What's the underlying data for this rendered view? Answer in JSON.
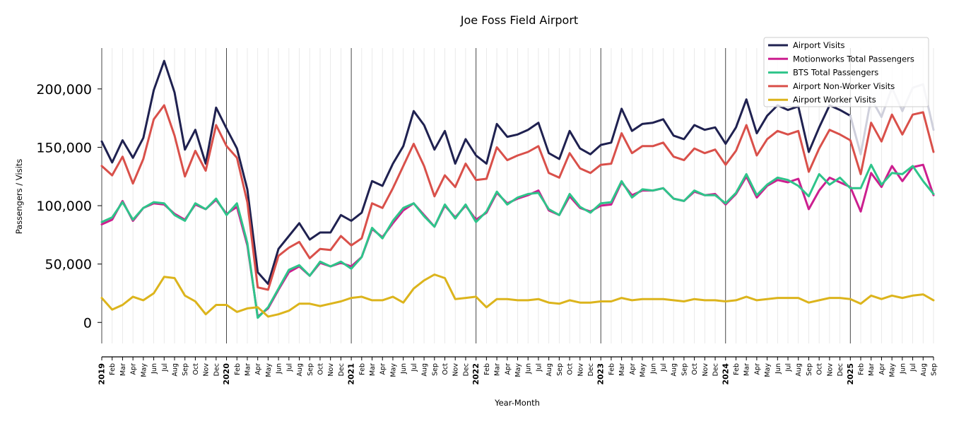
{
  "chart_data": {
    "type": "line",
    "title": "Joe Foss Field Airport",
    "xlabel": "Year-Month",
    "ylabel": "Passengers / Visits",
    "ylim": [
      -18000,
      235000
    ],
    "yticks": [
      0,
      50000,
      100000,
      150000,
      200000
    ],
    "ytick_labels": [
      "0",
      "50,000",
      "100,000",
      "150,000",
      "200,000"
    ],
    "grid": "vertical month lines, darker lines at year starts",
    "legend_position": "top-right",
    "years": [
      "2019",
      "2020",
      "2021",
      "2022",
      "2023",
      "2024",
      "2025"
    ],
    "month_abbrev": [
      "Jan",
      "Feb",
      "Mar",
      "Apr",
      "May",
      "Jun",
      "Jul",
      "Aug",
      "Sep",
      "Oct",
      "Nov",
      "Dec"
    ],
    "x": [
      "2019-01",
      "2019-02",
      "2019-03",
      "2019-04",
      "2019-05",
      "2019-06",
      "2019-07",
      "2019-08",
      "2019-09",
      "2019-10",
      "2019-11",
      "2019-12",
      "2020-01",
      "2020-02",
      "2020-03",
      "2020-04",
      "2020-05",
      "2020-06",
      "2020-07",
      "2020-08",
      "2020-09",
      "2020-10",
      "2020-11",
      "2020-12",
      "2021-01",
      "2021-02",
      "2021-03",
      "2021-04",
      "2021-05",
      "2021-06",
      "2021-07",
      "2021-08",
      "2021-09",
      "2021-10",
      "2021-11",
      "2021-12",
      "2022-01",
      "2022-02",
      "2022-03",
      "2022-04",
      "2022-05",
      "2022-06",
      "2022-07",
      "2022-08",
      "2022-09",
      "2022-10",
      "2022-11",
      "2022-12",
      "2023-01",
      "2023-02",
      "2023-03",
      "2023-04",
      "2023-05",
      "2023-06",
      "2023-07",
      "2023-08",
      "2023-09",
      "2023-10",
      "2023-11",
      "2023-12",
      "2024-01",
      "2024-02",
      "2024-03",
      "2024-04",
      "2024-05",
      "2024-06",
      "2024-07",
      "2024-08",
      "2024-09",
      "2024-10",
      "2024-11",
      "2024-12",
      "2025-01",
      "2025-02",
      "2025-03",
      "2025-04",
      "2025-05",
      "2025-06",
      "2025-07",
      "2025-08",
      "2025-09"
    ],
    "series": [
      {
        "name": "Airport Visits",
        "color": "#1f2150",
        "values": [
          155000,
          137000,
          156000,
          141000,
          158000,
          199000,
          224000,
          197000,
          148000,
          165000,
          136000,
          184000,
          166000,
          149000,
          114000,
          43000,
          33000,
          63000,
          74000,
          85000,
          71000,
          77000,
          77000,
          92000,
          87000,
          94000,
          121000,
          117000,
          136000,
          151000,
          181000,
          169000,
          148000,
          164000,
          136000,
          157000,
          143000,
          136000,
          170000,
          159000,
          161000,
          165000,
          171000,
          145000,
          140000,
          164000,
          149000,
          144000,
          152000,
          154000,
          183000,
          164000,
          170000,
          171000,
          174000,
          160000,
          157000,
          169000,
          165000,
          167000,
          153000,
          167000,
          191000,
          162000,
          177000,
          186000,
          182000,
          185000,
          146000,
          167000,
          186000,
          182000,
          177000,
          144000,
          192000,
          176000,
          201000,
          181000,
          201000,
          204000,
          165000
        ],
        "fade_from_index": 72,
        "fade_color": "#cfd0dc"
      },
      {
        "name": "Motionworks Total Passengers",
        "color": "#cc1f8f",
        "values": [
          84000,
          88000,
          104000,
          87000,
          98000,
          102000,
          101000,
          93000,
          88000,
          101000,
          97000,
          105000,
          93000,
          99000,
          66000,
          5000,
          12000,
          28000,
          43000,
          48000,
          40000,
          51000,
          48000,
          51000,
          48000,
          56000,
          80000,
          73000,
          85000,
          96000,
          102000,
          92000,
          82000,
          100000,
          90000,
          100000,
          88000,
          94000,
          111000,
          102000,
          106000,
          109000,
          113000,
          96000,
          92000,
          108000,
          98000,
          95000,
          100000,
          101000,
          120000,
          109000,
          113000,
          113000,
          115000,
          106000,
          104000,
          112000,
          109000,
          110000,
          101000,
          110000,
          125000,
          107000,
          117000,
          122000,
          120000,
          123000,
          97000,
          113000,
          124000,
          120000,
          116000,
          95000,
          128000,
          116000,
          134000,
          121000,
          133000,
          135000,
          109000
        ]
      },
      {
        "name": "BTS Total Passengers",
        "color": "#2ec48a",
        "values": [
          86000,
          90000,
          103000,
          88000,
          98000,
          103000,
          102000,
          92000,
          87000,
          102000,
          97000,
          106000,
          92000,
          102000,
          68000,
          4000,
          13000,
          29000,
          45000,
          49000,
          40000,
          52000,
          48000,
          52000,
          46000,
          56000,
          81000,
          72000,
          87000,
          98000,
          102000,
          91000,
          82000,
          101000,
          89000,
          101000,
          86000,
          95000,
          112000,
          101000,
          107000,
          110000,
          111000,
          97000,
          92000,
          110000,
          99000,
          94000,
          102000,
          103000,
          121000,
          107000,
          114000,
          113000,
          115000,
          106000,
          104000,
          113000,
          109000,
          109000,
          102000,
          111000,
          127000,
          109000,
          118000,
          124000,
          122000,
          117000,
          108000,
          127000,
          118000,
          124000,
          115000,
          115000,
          135000,
          118000,
          128000,
          127000,
          134000,
          121000,
          110000
        ]
      },
      {
        "name": "Airport Non-Worker Visits",
        "color": "#d9504a",
        "values": [
          134000,
          126000,
          142000,
          119000,
          140000,
          174000,
          186000,
          160000,
          125000,
          147000,
          130000,
          169000,
          151000,
          141000,
          103000,
          30000,
          28000,
          57000,
          64000,
          69000,
          55000,
          63000,
          62000,
          74000,
          66000,
          72000,
          102000,
          98000,
          115000,
          134000,
          153000,
          134000,
          108000,
          126000,
          116000,
          136000,
          122000,
          123000,
          150000,
          139000,
          143000,
          146000,
          151000,
          128000,
          124000,
          145000,
          132000,
          128000,
          135000,
          136000,
          162000,
          145000,
          151000,
          151000,
          154000,
          142000,
          139000,
          149000,
          145000,
          148000,
          135000,
          147000,
          169000,
          143000,
          157000,
          164000,
          161000,
          164000,
          129000,
          149000,
          165000,
          161000,
          156000,
          127000,
          171000,
          155000,
          178000,
          161000,
          178000,
          180000,
          146000
        ]
      },
      {
        "name": "Airport Worker Visits",
        "color": "#dcb41c",
        "values": [
          21000,
          11000,
          15000,
          22000,
          19000,
          25000,
          39000,
          38000,
          23000,
          18000,
          7000,
          15000,
          15000,
          9000,
          12000,
          13000,
          5000,
          7000,
          10000,
          16000,
          16000,
          14000,
          16000,
          18000,
          21000,
          22000,
          19000,
          19000,
          22000,
          17000,
          29000,
          36000,
          41000,
          38000,
          20000,
          21000,
          22000,
          13000,
          20000,
          20000,
          19000,
          19000,
          20000,
          17000,
          16000,
          19000,
          17000,
          17000,
          18000,
          18000,
          21000,
          19000,
          20000,
          20000,
          20000,
          19000,
          18000,
          20000,
          19000,
          19000,
          18000,
          19000,
          22000,
          19000,
          20000,
          21000,
          21000,
          21000,
          17000,
          19000,
          21000,
          21000,
          20000,
          16000,
          23000,
          20000,
          23000,
          21000,
          23000,
          24000,
          19000
        ]
      }
    ]
  }
}
